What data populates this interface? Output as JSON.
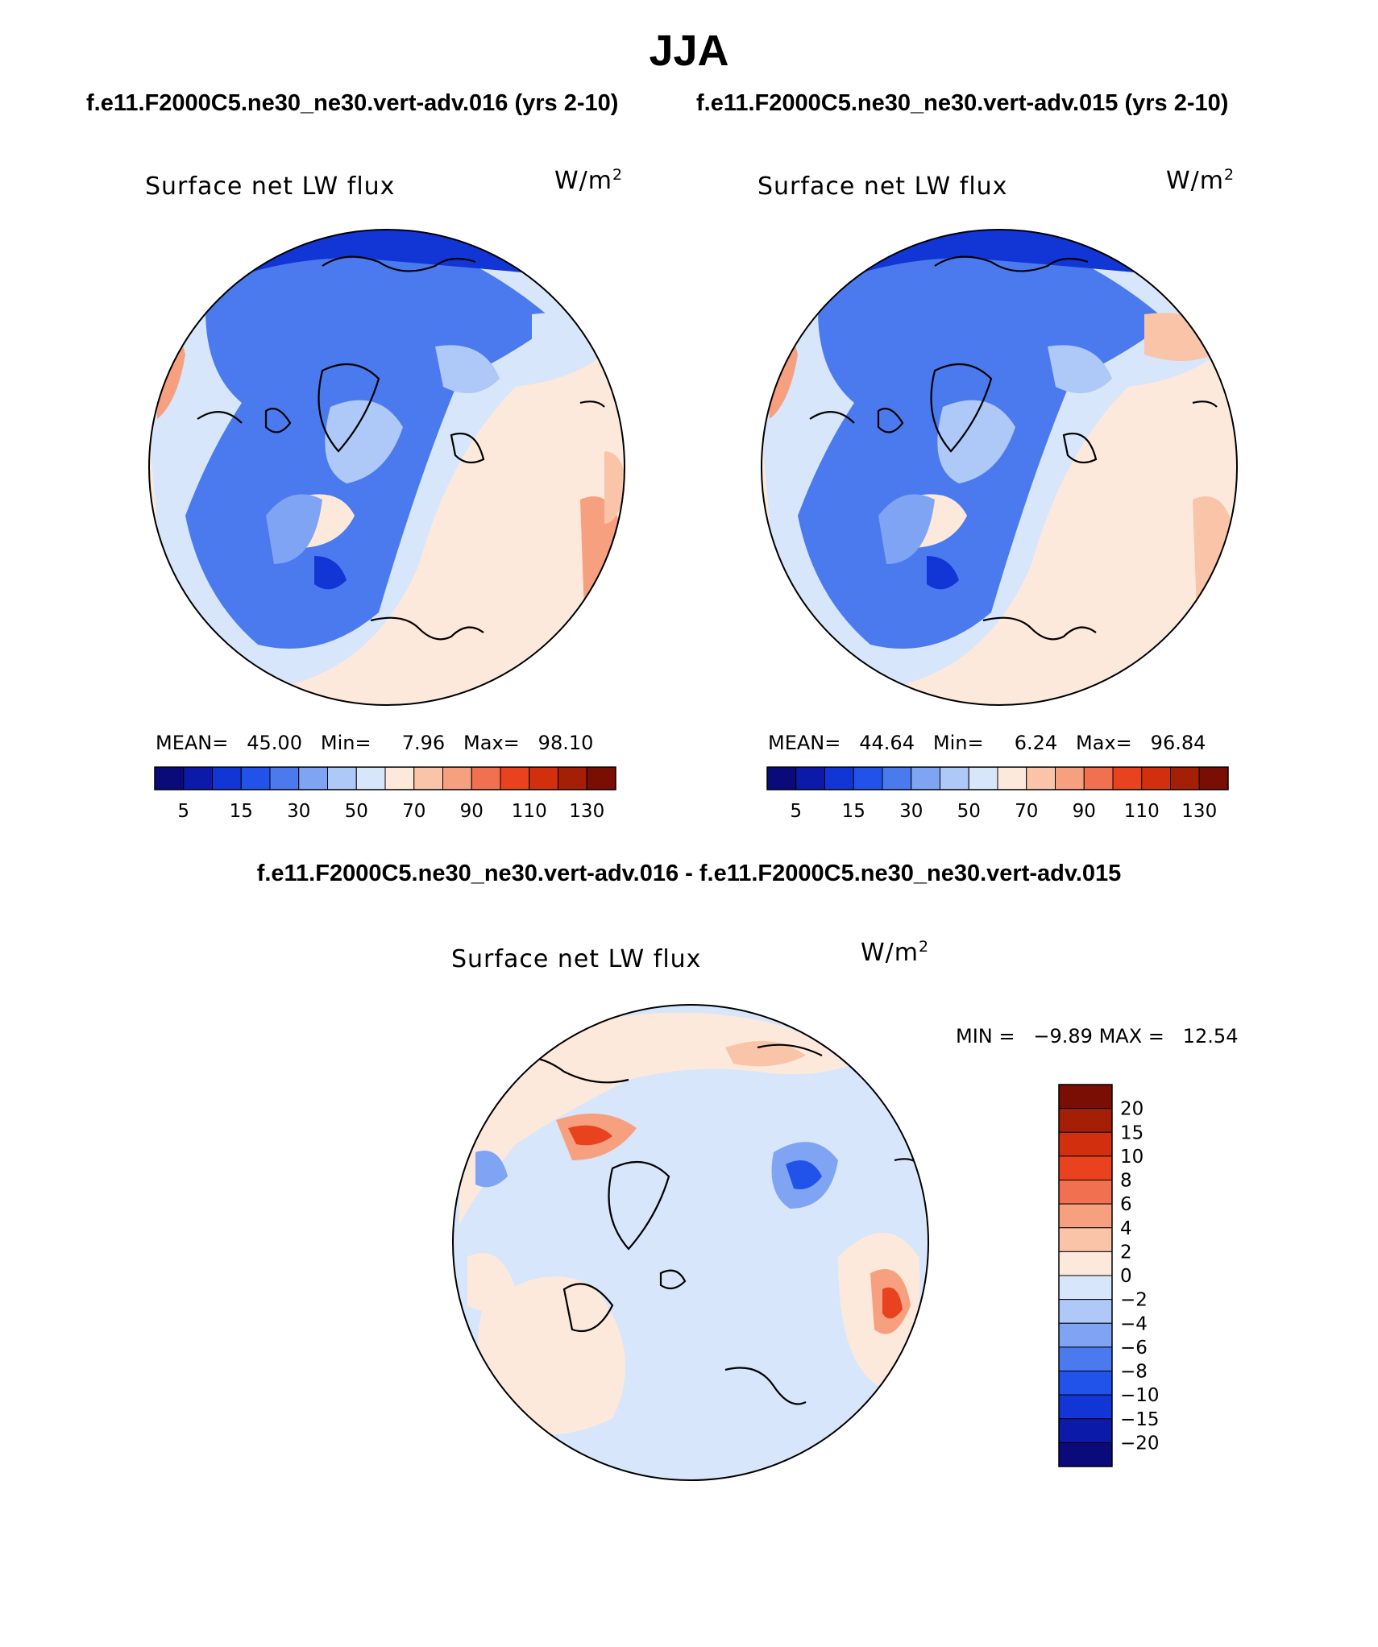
{
  "page": {
    "season": "JJA",
    "case1_title": "f.e11.F2000C5.ne30_ne30.vert-adv.016 (yrs 2-10)",
    "case2_title": "f.e11.F2000C5.ne30_ne30.vert-adv.015 (yrs 2-10)",
    "diff_title": "f.e11.F2000C5.ne30_ne30.vert-adv.016 - f.e11.F2000C5.ne30_ne30.vert-adv.015"
  },
  "colors": {
    "seq_palette": [
      "#0a0a7a",
      "#0b1aa8",
      "#1236d6",
      "#2153eb",
      "#4a7aee",
      "#7fa4f3",
      "#aec8f7",
      "#d7e6fb",
      "#fde9dc",
      "#f9c4a8",
      "#f6a07f",
      "#f1704f",
      "#e8421f",
      "#d22f0e",
      "#a51e06",
      "#7a0d04"
    ],
    "diff_palette": [
      "#0a0a7a",
      "#0b1aa8",
      "#1236d6",
      "#2153eb",
      "#4a7aee",
      "#7fa4f3",
      "#aec8f7",
      "#d7e6fb",
      "#fde9dc",
      "#f9c4a8",
      "#f6a07f",
      "#f1704f",
      "#e8421f",
      "#d22f0e",
      "#a51e06",
      "#7a0d04"
    ],
    "coastline": "#000000"
  },
  "chart_data": [
    {
      "type": "heatmap",
      "projection": "north polar stereographic",
      "title": "Surface net LW flux",
      "units_base": "W/m",
      "units_exp": "2",
      "stats": {
        "mean_label": "MEAN=",
        "mean": "45.00",
        "min_label": "Min=",
        "min": "7.96",
        "max_label": "Max=",
        "max": "98.10"
      },
      "colorbar_ticks": [
        "5",
        "15",
        "30",
        "50",
        "70",
        "90",
        "110",
        "130"
      ]
    },
    {
      "type": "heatmap",
      "projection": "north polar stereographic",
      "title": "Surface net LW flux",
      "units_base": "W/m",
      "units_exp": "2",
      "stats": {
        "mean_label": "MEAN=",
        "mean": "44.64",
        "min_label": "Min=",
        "min": "6.24",
        "max_label": "Max=",
        "max": "96.84"
      },
      "colorbar_ticks": [
        "5",
        "15",
        "30",
        "50",
        "70",
        "90",
        "110",
        "130"
      ]
    },
    {
      "type": "heatmap",
      "projection": "north polar stereographic",
      "title": "Surface net LW flux",
      "units_base": "W/m",
      "units_exp": "2",
      "stats": {
        "min_label": "MIN =",
        "min": "−9.89",
        "max_label": "MAX =",
        "max": "12.54"
      },
      "colorbar_ticks": [
        "20",
        "15",
        "10",
        "8",
        "6",
        "4",
        "2",
        "0",
        "−2",
        "−4",
        "−6",
        "−8",
        "−10",
        "−15",
        "−20"
      ]
    }
  ]
}
